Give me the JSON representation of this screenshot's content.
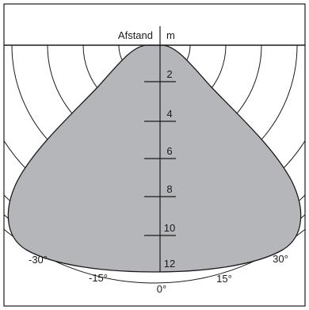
{
  "header": {
    "label": "Afstand",
    "unit": "m"
  },
  "distance_ticks": [
    "2",
    "4",
    "6",
    "8",
    "10",
    "12"
  ],
  "angle_labels": [
    "-30°",
    "-15°",
    "0°",
    "15°",
    "30°"
  ],
  "colors": {
    "lobe_fill": "#b5b6b9",
    "line": "#1a1a1a",
    "background": "#ffffff"
  }
}
